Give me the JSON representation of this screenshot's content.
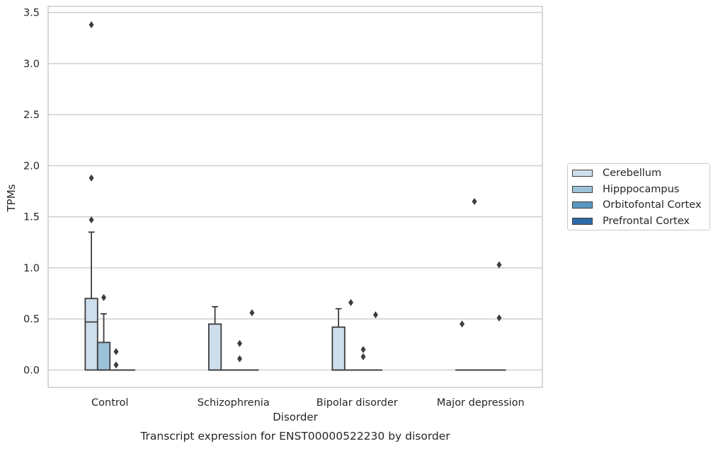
{
  "chart_data": {
    "type": "box",
    "title": "Transcript expression for ENST00000522230 by disorder",
    "xlabel": "Disorder",
    "ylabel": "TPMs",
    "ylim": [
      -0.17,
      3.56
    ],
    "yticks": [
      "0.0",
      "0.5",
      "1.0",
      "1.5",
      "2.0",
      "2.5",
      "3.0",
      "3.5"
    ],
    "categories": [
      "Control",
      "Schizophrenia",
      "Bipolar disorder",
      "Major depression"
    ],
    "grid": true,
    "legend_position": "right",
    "series": [
      {
        "name": "Cerebellum",
        "color": "#cfdeec",
        "boxes": [
          {
            "category": "Control",
            "whisker_low": 0.0,
            "q1": 0.0,
            "median": 0.47,
            "q3": 0.7,
            "whisker_high": 1.35,
            "outliers": [
              1.88,
              1.47,
              3.38
            ]
          },
          {
            "category": "Schizophrenia",
            "whisker_low": 0.0,
            "q1": 0.0,
            "median": 0.0,
            "q3": 0.45,
            "whisker_high": 0.62,
            "outliers": []
          },
          {
            "category": "Bipolar disorder",
            "whisker_low": 0.0,
            "q1": 0.0,
            "median": 0.0,
            "q3": 0.42,
            "whisker_high": 0.6,
            "outliers": []
          },
          {
            "category": "Major depression",
            "whisker_low": 0.0,
            "q1": 0.0,
            "median": 0.0,
            "q3": 0.0,
            "whisker_high": 0.0,
            "outliers": [
              0.45
            ]
          }
        ]
      },
      {
        "name": "Hipppocampus",
        "color": "#9dc1d9",
        "boxes": [
          {
            "category": "Control",
            "whisker_low": 0.0,
            "q1": 0.0,
            "median": 0.0,
            "q3": 0.27,
            "whisker_high": 0.55,
            "outliers": [
              0.71
            ]
          },
          {
            "category": "Schizophrenia",
            "whisker_low": 0.0,
            "q1": 0.0,
            "median": 0.0,
            "q3": 0.0,
            "whisker_high": 0.0,
            "outliers": []
          },
          {
            "category": "Bipolar disorder",
            "whisker_low": 0.0,
            "q1": 0.0,
            "median": 0.0,
            "q3": 0.0,
            "whisker_high": 0.0,
            "outliers": [
              0.66
            ]
          },
          {
            "category": "Major depression",
            "whisker_low": 0.0,
            "q1": 0.0,
            "median": 0.0,
            "q3": 0.0,
            "whisker_high": 0.0,
            "outliers": [
              1.65
            ]
          }
        ]
      },
      {
        "name": "Orbitofontal Cortex",
        "color": "#5b97c0",
        "boxes": [
          {
            "category": "Control",
            "whisker_low": 0.0,
            "q1": 0.0,
            "median": 0.0,
            "q3": 0.0,
            "whisker_high": 0.0,
            "outliers": [
              0.18,
              0.05
            ]
          },
          {
            "category": "Schizophrenia",
            "whisker_low": 0.0,
            "q1": 0.0,
            "median": 0.0,
            "q3": 0.0,
            "whisker_high": 0.0,
            "outliers": [
              0.26,
              0.11
            ]
          },
          {
            "category": "Bipolar disorder",
            "whisker_low": 0.0,
            "q1": 0.0,
            "median": 0.0,
            "q3": 0.0,
            "whisker_high": 0.0,
            "outliers": [
              0.2,
              0.13
            ]
          },
          {
            "category": "Major depression",
            "whisker_low": 0.0,
            "q1": 0.0,
            "median": 0.0,
            "q3": 0.0,
            "whisker_high": 0.0,
            "outliers": []
          }
        ]
      },
      {
        "name": "Prefrontal Cortex",
        "color": "#2d6aa6",
        "boxes": [
          {
            "category": "Control",
            "whisker_low": 0.0,
            "q1": 0.0,
            "median": 0.0,
            "q3": 0.0,
            "whisker_high": 0.0,
            "outliers": []
          },
          {
            "category": "Schizophrenia",
            "whisker_low": 0.0,
            "q1": 0.0,
            "median": 0.0,
            "q3": 0.0,
            "whisker_high": 0.0,
            "outliers": [
              0.56
            ]
          },
          {
            "category": "Bipolar disorder",
            "whisker_low": 0.0,
            "q1": 0.0,
            "median": 0.0,
            "q3": 0.0,
            "whisker_high": 0.0,
            "outliers": [
              0.54
            ]
          },
          {
            "category": "Major depression",
            "whisker_low": 0.0,
            "q1": 0.0,
            "median": 0.0,
            "q3": 0.0,
            "whisker_high": 0.0,
            "outliers": [
              1.03,
              0.51
            ]
          }
        ]
      }
    ]
  }
}
